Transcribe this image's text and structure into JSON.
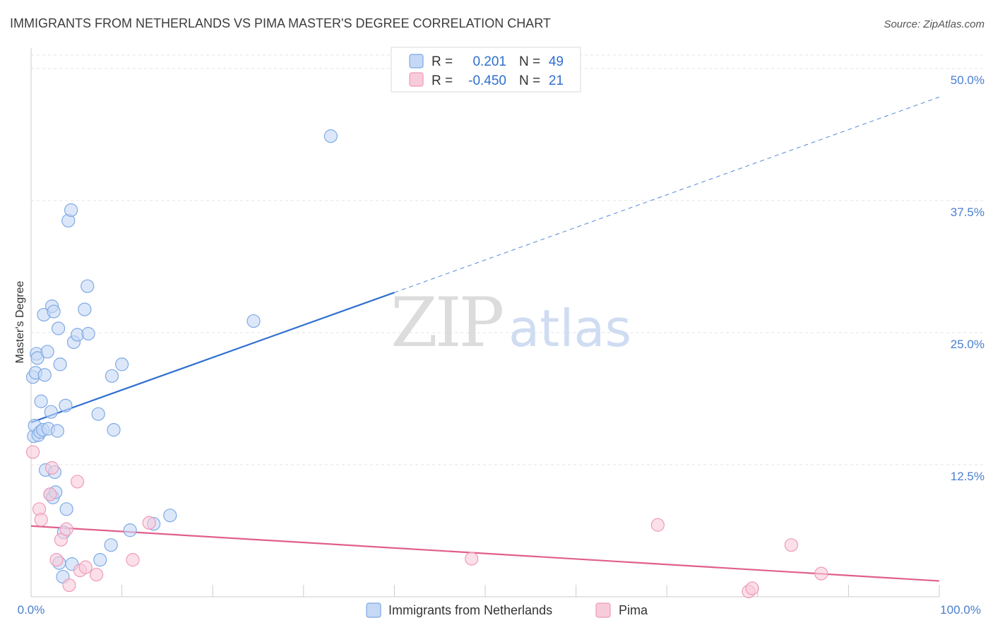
{
  "chart_data": {
    "type": "scatter",
    "title": "IMMIGRANTS FROM NETHERLANDS VS PIMA MASTER'S DEGREE CORRELATION CHART",
    "source": "Source: ZipAtlas.com",
    "ylabel": "Master's Degree",
    "xlim": [
      0,
      100
    ],
    "ylim": [
      0,
      50
    ],
    "x_tick_labels": [
      "0.0%",
      "100.0%"
    ],
    "y_ticks": [
      {
        "value": 12.5,
        "label": "12.5%"
      },
      {
        "value": 25.0,
        "label": "25.0%"
      },
      {
        "value": 37.5,
        "label": "37.5%"
      },
      {
        "value": 50.0,
        "label": "50.0%"
      }
    ],
    "grid": "horizontal dashed",
    "watermark": {
      "zip": "ZIP",
      "atlas": "atlas"
    },
    "legend": {
      "placement": "top-center",
      "rows": [
        {
          "r_label": "R =",
          "r_value": "0.201",
          "n_label": "N =",
          "n_value": "49"
        },
        {
          "r_label": "R =",
          "r_value": "-0.450",
          "n_label": "N =",
          "n_value": "21"
        }
      ]
    },
    "series": [
      {
        "name": "Immigrants from Netherlands",
        "color": "#7fa9e6",
        "fill": "#c5d8f5",
        "line_color": "#2f6fd0",
        "trend": {
          "x0": 0,
          "y0": 16.5,
          "x1": 40,
          "y1": 28.8,
          "x_end": 100,
          "y_end": 47.3
        },
        "points": [
          [
            0.2,
            20.8
          ],
          [
            0.3,
            15.2
          ],
          [
            0.4,
            16.2
          ],
          [
            0.5,
            21.2
          ],
          [
            0.6,
            23.0
          ],
          [
            0.7,
            22.6
          ],
          [
            0.8,
            15.3
          ],
          [
            1.0,
            15.6
          ],
          [
            1.1,
            18.5
          ],
          [
            1.3,
            15.8
          ],
          [
            1.4,
            26.7
          ],
          [
            1.5,
            21.0
          ],
          [
            1.6,
            12.0
          ],
          [
            1.8,
            23.2
          ],
          [
            1.9,
            15.9
          ],
          [
            2.1,
            9.7
          ],
          [
            2.2,
            17.5
          ],
          [
            2.3,
            27.5
          ],
          [
            2.4,
            9.4
          ],
          [
            2.5,
            27.0
          ],
          [
            2.6,
            11.8
          ],
          [
            2.7,
            9.9
          ],
          [
            2.9,
            15.7
          ],
          [
            3.0,
            25.4
          ],
          [
            3.1,
            3.2
          ],
          [
            3.2,
            22.0
          ],
          [
            3.5,
            1.9
          ],
          [
            3.6,
            6.1
          ],
          [
            3.8,
            18.1
          ],
          [
            3.9,
            8.3
          ],
          [
            4.1,
            35.6
          ],
          [
            4.4,
            36.6
          ],
          [
            4.5,
            3.1
          ],
          [
            4.7,
            24.1
          ],
          [
            5.1,
            24.8
          ],
          [
            5.9,
            27.2
          ],
          [
            6.2,
            29.4
          ],
          [
            6.3,
            24.9
          ],
          [
            7.4,
            17.3
          ],
          [
            7.6,
            3.5
          ],
          [
            8.8,
            4.9
          ],
          [
            8.9,
            20.9
          ],
          [
            9.1,
            15.8
          ],
          [
            10.0,
            22.0
          ],
          [
            10.9,
            6.3
          ],
          [
            13.5,
            6.9
          ],
          [
            15.3,
            7.7
          ],
          [
            24.5,
            26.1
          ],
          [
            33.0,
            43.6
          ]
        ]
      },
      {
        "name": "Pima",
        "color": "#ef9ab8",
        "fill": "#f8cbdb",
        "line_color": "#e05f8c",
        "trend": {
          "x0": 0,
          "y0": 6.7,
          "x1": 100,
          "y1": 1.5
        },
        "points": [
          [
            0.2,
            13.7
          ],
          [
            0.9,
            8.3
          ],
          [
            1.1,
            7.3
          ],
          [
            2.1,
            9.7
          ],
          [
            2.3,
            12.2
          ],
          [
            2.8,
            3.5
          ],
          [
            3.3,
            5.4
          ],
          [
            3.9,
            6.4
          ],
          [
            4.2,
            1.1
          ],
          [
            5.1,
            10.9
          ],
          [
            5.4,
            2.5
          ],
          [
            6.0,
            2.8
          ],
          [
            7.2,
            2.1
          ],
          [
            11.2,
            3.5
          ],
          [
            13.0,
            7.0
          ],
          [
            48.5,
            3.6
          ],
          [
            69.0,
            6.8
          ],
          [
            79.0,
            0.5
          ],
          [
            79.4,
            0.8
          ],
          [
            83.7,
            4.9
          ],
          [
            87.0,
            2.2
          ]
        ]
      }
    ]
  }
}
